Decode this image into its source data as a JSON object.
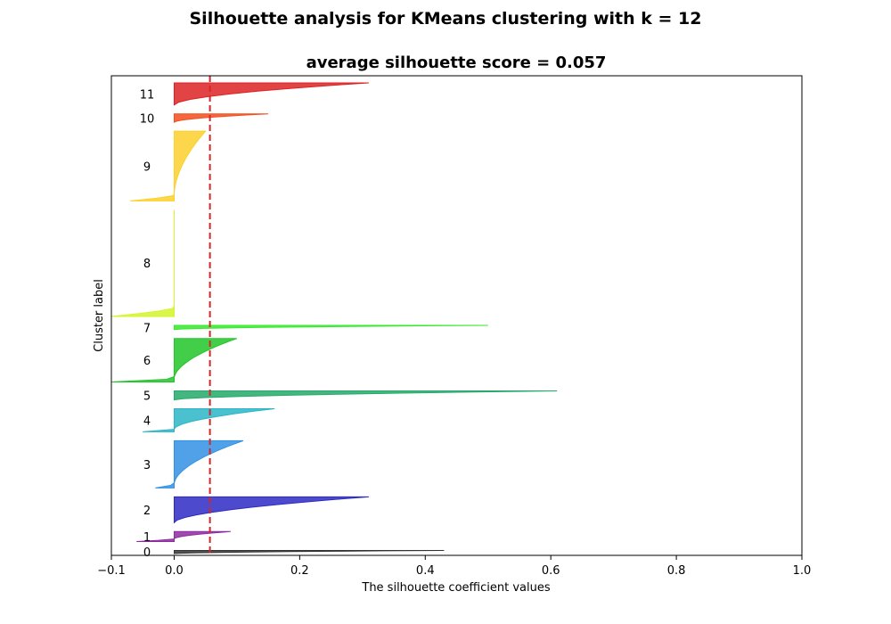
{
  "figure_title": "Silhouette analysis for KMeans clustering with k = 12",
  "chart_data": {
    "type": "area",
    "title": "average silhouette score = 0.057",
    "xlabel": "The silhouette coefficient values",
    "ylabel": "Cluster label",
    "xlim": [
      -0.1,
      1.0
    ],
    "xticks": [
      -0.1,
      0.0,
      0.2,
      0.4,
      0.6,
      0.8,
      1.0
    ],
    "xtick_labels": [
      "−0.1",
      "0.0",
      "0.2",
      "0.4",
      "0.6",
      "0.8",
      "1.0"
    ],
    "average_score": 0.057,
    "average_line_color": "#d62728",
    "grid": false,
    "clusters": [
      {
        "label": "0",
        "color": "#333333",
        "min": 0.0,
        "max": 0.43,
        "size": 6
      },
      {
        "label": "1",
        "color": "#8e2aa1",
        "min": -0.06,
        "max": 0.09,
        "size": 19
      },
      {
        "label": "2",
        "color": "#2e2ac4",
        "min": 0.0,
        "max": 0.31,
        "size": 49
      },
      {
        "label": "3",
        "color": "#3391e4",
        "min": -0.03,
        "max": 0.11,
        "size": 90
      },
      {
        "label": "4",
        "color": "#2bb5c5",
        "min": -0.05,
        "max": 0.16,
        "size": 44
      },
      {
        "label": "5",
        "color": "#26a96a",
        "min": 0.0,
        "max": 0.61,
        "size": 17
      },
      {
        "label": "6",
        "color": "#22c52a",
        "min": -0.1,
        "max": 0.1,
        "size": 83
      },
      {
        "label": "7",
        "color": "#35ea2c",
        "min": 0.0,
        "max": 0.5,
        "size": 8
      },
      {
        "label": "8",
        "color": "#d4f52a",
        "min": -0.1,
        "max": 0.0,
        "size": 203
      },
      {
        "label": "9",
        "color": "#fdd02c",
        "min": -0.07,
        "max": 0.05,
        "size": 133
      },
      {
        "label": "10",
        "color": "#f34d1c",
        "min": 0.0,
        "max": 0.15,
        "size": 16
      },
      {
        "label": "11",
        "color": "#dd2225",
        "min": 0.0,
        "max": 0.31,
        "size": 42
      }
    ]
  }
}
